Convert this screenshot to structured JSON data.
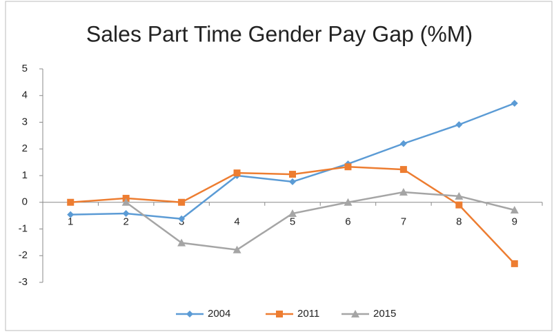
{
  "chart_data": {
    "type": "line",
    "title": "Sales Part Time Gender Pay Gap (%M)",
    "categories": [
      "1",
      "2",
      "3",
      "4",
      "5",
      "6",
      "7",
      "8",
      "9"
    ],
    "series": [
      {
        "name": "2004",
        "color": "#5b9bd5",
        "marker": "diamond",
        "values": [
          -0.46,
          -0.42,
          -0.62,
          1.0,
          0.77,
          1.44,
          2.2,
          2.91,
          3.71
        ]
      },
      {
        "name": "2011",
        "color": "#ed7d31",
        "marker": "square",
        "values": [
          0,
          0.15,
          0,
          1.1,
          1.05,
          1.33,
          1.23,
          -0.1,
          -2.3
        ]
      },
      {
        "name": "2015",
        "color": "#a5a5a5",
        "marker": "triangle",
        "values": [
          null,
          0,
          -1.52,
          -1.78,
          -0.42,
          0,
          0.38,
          0.23,
          -0.29
        ]
      }
    ],
    "ylim": [
      -3,
      5
    ],
    "yticks": [
      -3,
      -2,
      -1,
      0,
      1,
      2,
      3,
      4,
      5
    ],
    "grid": false,
    "legend": "bottom"
  }
}
